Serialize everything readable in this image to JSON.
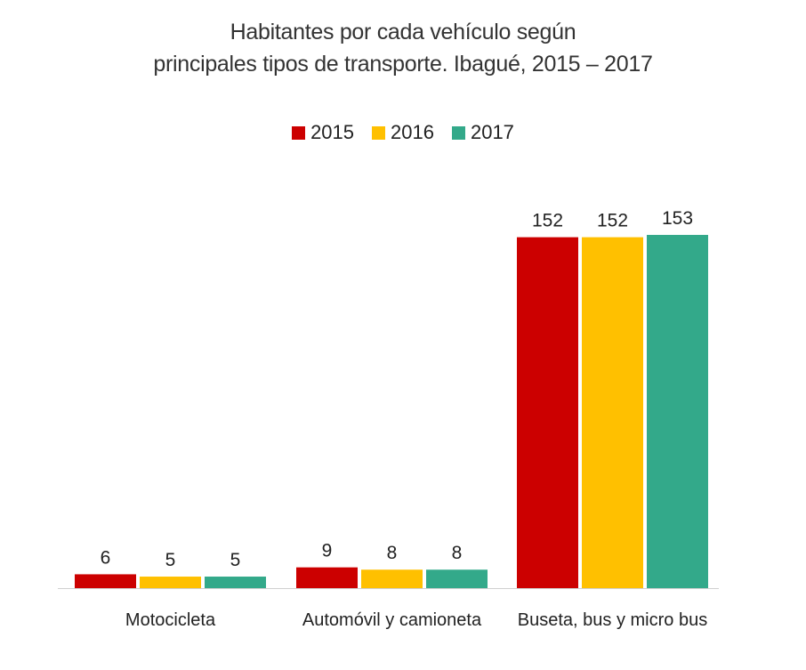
{
  "chart_data": {
    "type": "bar",
    "title_line1": "Habitantes por cada vehículo según",
    "title_line2": "principales tipos de transporte. Ibagué, 2015 – 2017",
    "categories": [
      "Motocicleta",
      "Automóvil y camioneta",
      "Buseta, bus y micro bus"
    ],
    "series": [
      {
        "name": "2015",
        "color": "#CC0000",
        "values": [
          6,
          9,
          152
        ]
      },
      {
        "name": "2016",
        "color": "#FFC000",
        "values": [
          5,
          8,
          152
        ]
      },
      {
        "name": "2017",
        "color": "#33A98A",
        "values": [
          5,
          8,
          153
        ]
      }
    ],
    "xlabel": "",
    "ylabel": "",
    "ylim": [
      0,
      153
    ],
    "grid": false,
    "legend_position": "top-center"
  }
}
